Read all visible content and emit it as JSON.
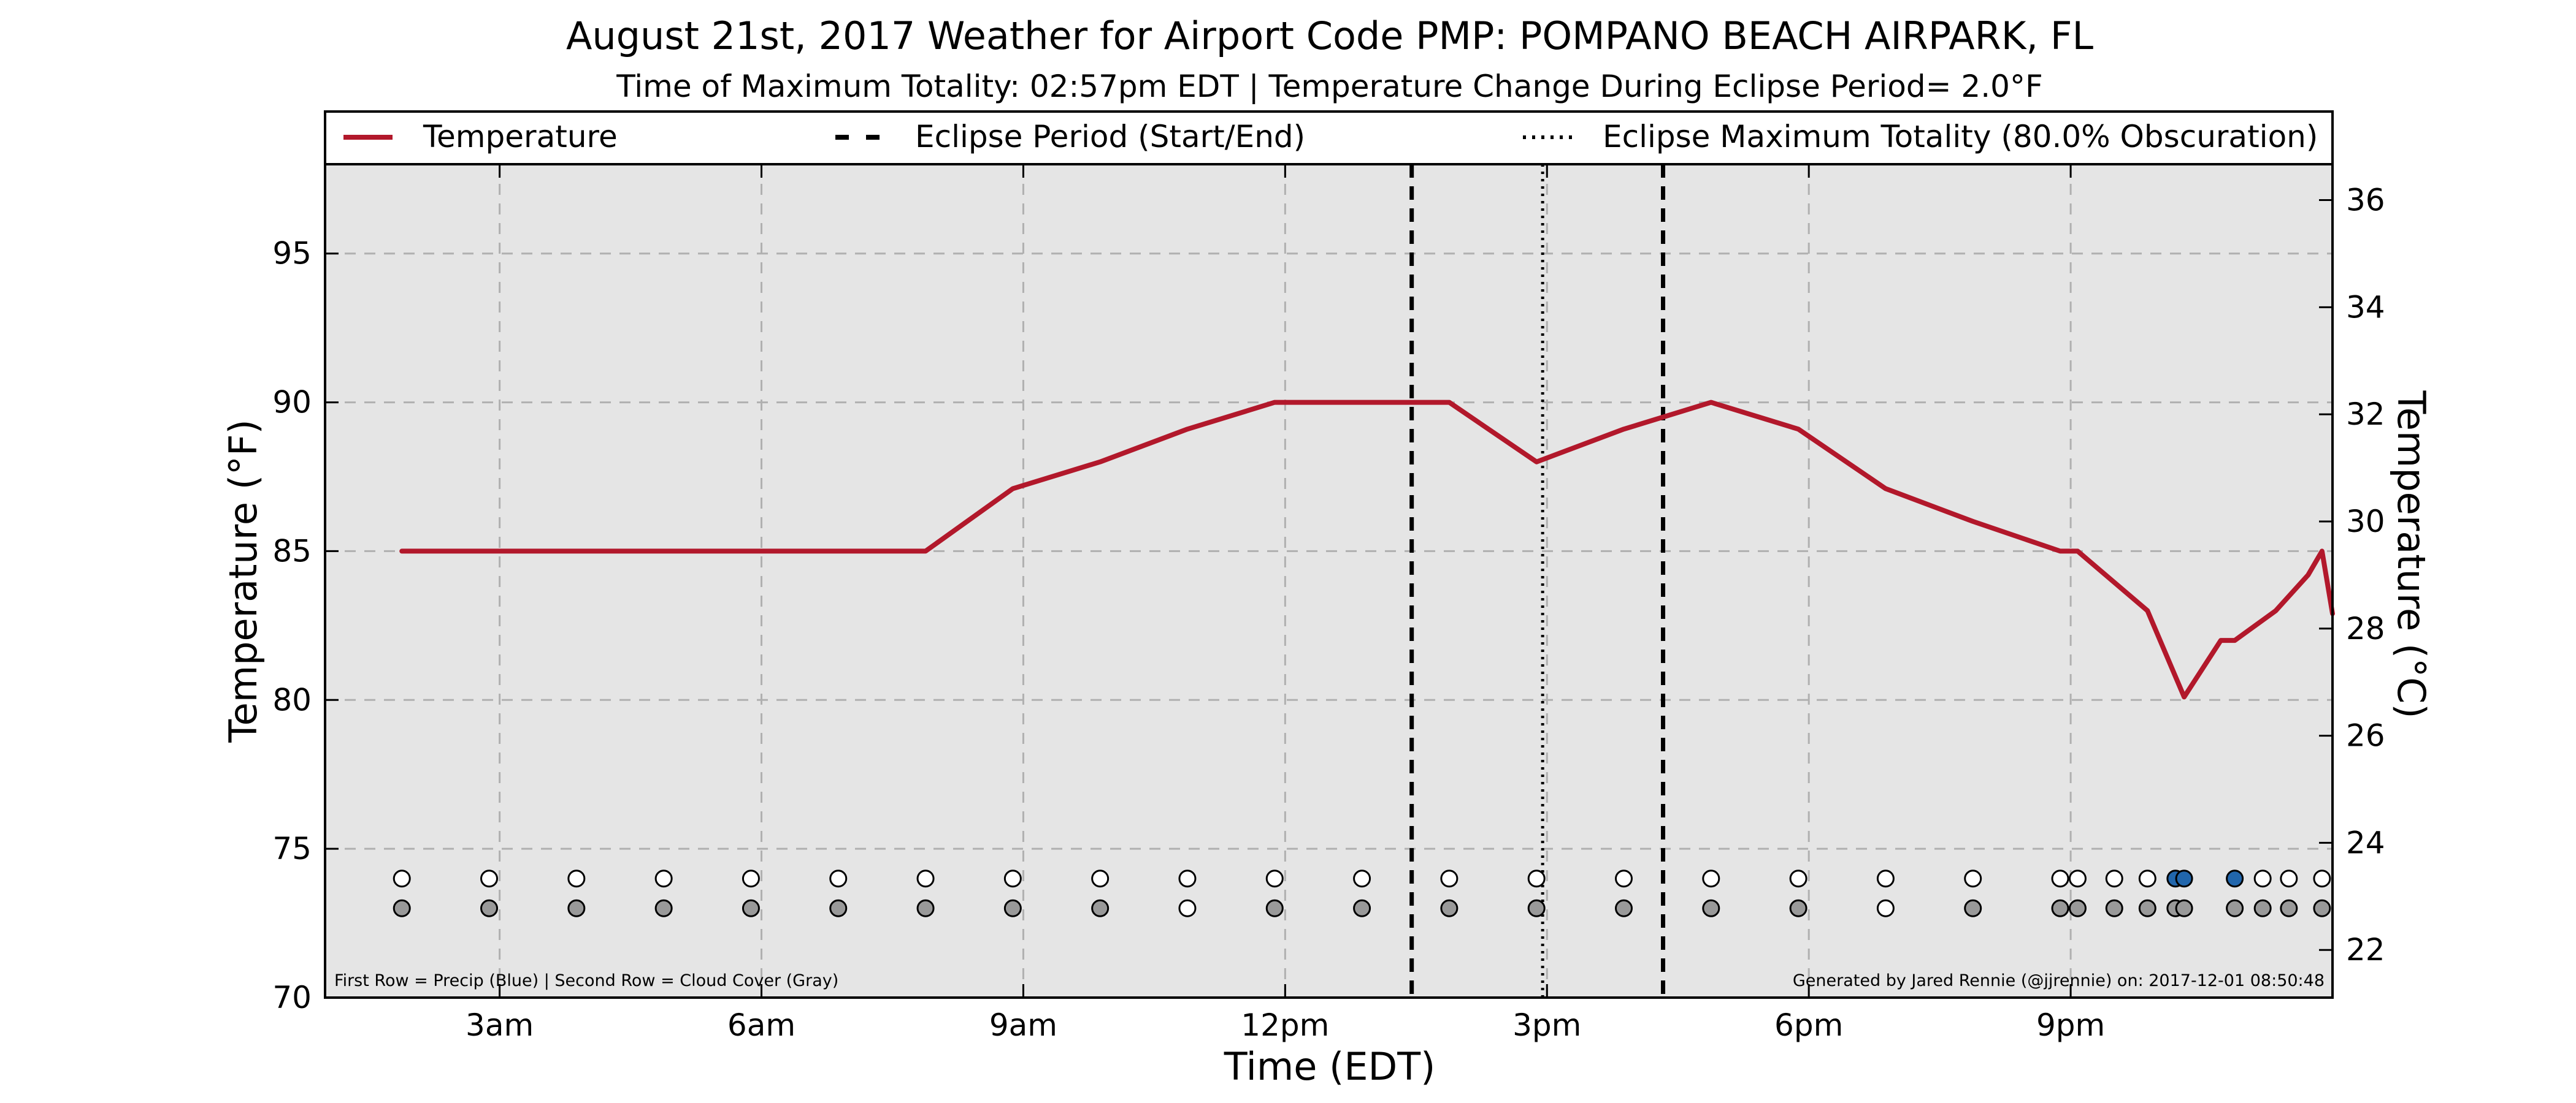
{
  "chart_data": {
    "type": "line",
    "title": "August 21st, 2017 Weather for Airport Code PMP: POMPANO BEACH AIRPARK, FL",
    "subtitle": "Time of Maximum Totality: 02:57pm EDT | Temperature Change During Eclipse Period= 2.0°F",
    "xlabel": "Time (EDT)",
    "ylabel": "Temperature (°F)",
    "ylabel_right": "Temperature (°C)",
    "xlim_hours": [
      1.0,
      24.0
    ],
    "ylim": [
      70,
      98
    ],
    "ylim_right_celsius": [
      21.11,
      36.67
    ],
    "x_ticks": [
      {
        "hour": 3,
        "label": "3am"
      },
      {
        "hour": 6,
        "label": "6am"
      },
      {
        "hour": 9,
        "label": "9am"
      },
      {
        "hour": 12,
        "label": "12pm"
      },
      {
        "hour": 15,
        "label": "3pm"
      },
      {
        "hour": 18,
        "label": "6pm"
      },
      {
        "hour": 21,
        "label": "9pm"
      }
    ],
    "y_ticks": [
      70,
      75,
      80,
      85,
      90,
      95
    ],
    "y_ticks_right": [
      22,
      24,
      26,
      28,
      30,
      32,
      34,
      36
    ],
    "grid": true,
    "legend_position": "top",
    "series": [
      {
        "name": "Temperature",
        "color": "#b2182b",
        "points": [
          [
            1.88,
            85
          ],
          [
            2.88,
            85
          ],
          [
            3.88,
            85
          ],
          [
            4.88,
            85
          ],
          [
            5.88,
            85
          ],
          [
            6.88,
            85
          ],
          [
            7.88,
            85
          ],
          [
            8.88,
            87.1
          ],
          [
            9.88,
            88
          ],
          [
            10.88,
            89.1
          ],
          [
            11.88,
            90
          ],
          [
            12.88,
            90
          ],
          [
            13.88,
            90
          ],
          [
            14.88,
            88
          ],
          [
            15.88,
            89.1
          ],
          [
            16.88,
            90
          ],
          [
            17.88,
            89.1
          ],
          [
            18.88,
            87.1
          ],
          [
            19.88,
            86
          ],
          [
            20.88,
            85
          ],
          [
            21.08,
            85
          ],
          [
            21.88,
            83
          ],
          [
            22.3,
            80.1
          ],
          [
            22.72,
            82
          ],
          [
            22.88,
            82
          ],
          [
            23.35,
            83
          ],
          [
            23.72,
            84.2
          ],
          [
            23.88,
            85
          ],
          [
            24.0,
            82.9
          ]
        ]
      }
    ],
    "eclipse_start_hour": 13.45,
    "eclipse_end_hour": 16.33,
    "max_totality_hour": 14.95,
    "legend": [
      {
        "label": "Temperature",
        "style": "solid",
        "color": "#b2182b"
      },
      {
        "label": "Eclipse Period (Start/End)",
        "style": "dashed",
        "color": "#000000"
      },
      {
        "label": "Eclipse Maximum Totality (80.0% Obscuration)",
        "style": "dotted",
        "color": "#000000"
      }
    ],
    "precip_row": {
      "y_value": 74,
      "points": [
        {
          "hour": 1.88,
          "precip": false
        },
        {
          "hour": 2.88,
          "precip": false
        },
        {
          "hour": 3.88,
          "precip": false
        },
        {
          "hour": 4.88,
          "precip": false
        },
        {
          "hour": 5.88,
          "precip": false
        },
        {
          "hour": 6.88,
          "precip": false
        },
        {
          "hour": 7.88,
          "precip": false
        },
        {
          "hour": 8.88,
          "precip": false
        },
        {
          "hour": 9.88,
          "precip": false
        },
        {
          "hour": 10.88,
          "precip": false
        },
        {
          "hour": 11.88,
          "precip": false
        },
        {
          "hour": 12.88,
          "precip": false
        },
        {
          "hour": 13.88,
          "precip": false
        },
        {
          "hour": 14.88,
          "precip": false
        },
        {
          "hour": 15.88,
          "precip": false
        },
        {
          "hour": 16.88,
          "precip": false
        },
        {
          "hour": 17.88,
          "precip": false
        },
        {
          "hour": 18.88,
          "precip": false
        },
        {
          "hour": 19.88,
          "precip": false
        },
        {
          "hour": 20.88,
          "precip": false
        },
        {
          "hour": 21.08,
          "precip": false
        },
        {
          "hour": 21.5,
          "precip": false
        },
        {
          "hour": 21.88,
          "precip": false
        },
        {
          "hour": 22.2,
          "precip": true
        },
        {
          "hour": 22.3,
          "precip": true
        },
        {
          "hour": 22.88,
          "precip": true
        },
        {
          "hour": 23.2,
          "precip": false
        },
        {
          "hour": 23.5,
          "precip": false
        },
        {
          "hour": 23.88,
          "precip": false
        }
      ]
    },
    "cloud_row": {
      "y_value": 73,
      "points": [
        {
          "hour": 1.88,
          "cloud": true
        },
        {
          "hour": 2.88,
          "cloud": true
        },
        {
          "hour": 3.88,
          "cloud": true
        },
        {
          "hour": 4.88,
          "cloud": true
        },
        {
          "hour": 5.88,
          "cloud": true
        },
        {
          "hour": 6.88,
          "cloud": true
        },
        {
          "hour": 7.88,
          "cloud": true
        },
        {
          "hour": 8.88,
          "cloud": true
        },
        {
          "hour": 9.88,
          "cloud": true
        },
        {
          "hour": 10.88,
          "cloud": false
        },
        {
          "hour": 11.88,
          "cloud": true
        },
        {
          "hour": 12.88,
          "cloud": true
        },
        {
          "hour": 13.88,
          "cloud": true
        },
        {
          "hour": 14.88,
          "cloud": true
        },
        {
          "hour": 15.88,
          "cloud": true
        },
        {
          "hour": 16.88,
          "cloud": true
        },
        {
          "hour": 17.88,
          "cloud": true
        },
        {
          "hour": 18.88,
          "cloud": false
        },
        {
          "hour": 19.88,
          "cloud": true
        },
        {
          "hour": 20.88,
          "cloud": true
        },
        {
          "hour": 21.08,
          "cloud": true
        },
        {
          "hour": 21.5,
          "cloud": true
        },
        {
          "hour": 21.88,
          "cloud": true
        },
        {
          "hour": 22.2,
          "cloud": true
        },
        {
          "hour": 22.3,
          "cloud": true
        },
        {
          "hour": 22.88,
          "cloud": true
        },
        {
          "hour": 23.2,
          "cloud": true
        },
        {
          "hour": 23.5,
          "cloud": true
        },
        {
          "hour": 23.88,
          "cloud": true
        }
      ]
    },
    "colors": {
      "plot_background": "#e5e5e5",
      "temperature_line": "#b2182b",
      "precip_fill": "#2166ac",
      "cloud_fill": "#999999",
      "empty_fill": "#ffffff"
    },
    "footnote_left": "First Row = Precip (Blue) | Second Row = Cloud Cover (Gray)",
    "footnote_right": "Generated by Jared Rennie (@jjrennie) on: 2017-12-01 08:50:48"
  }
}
